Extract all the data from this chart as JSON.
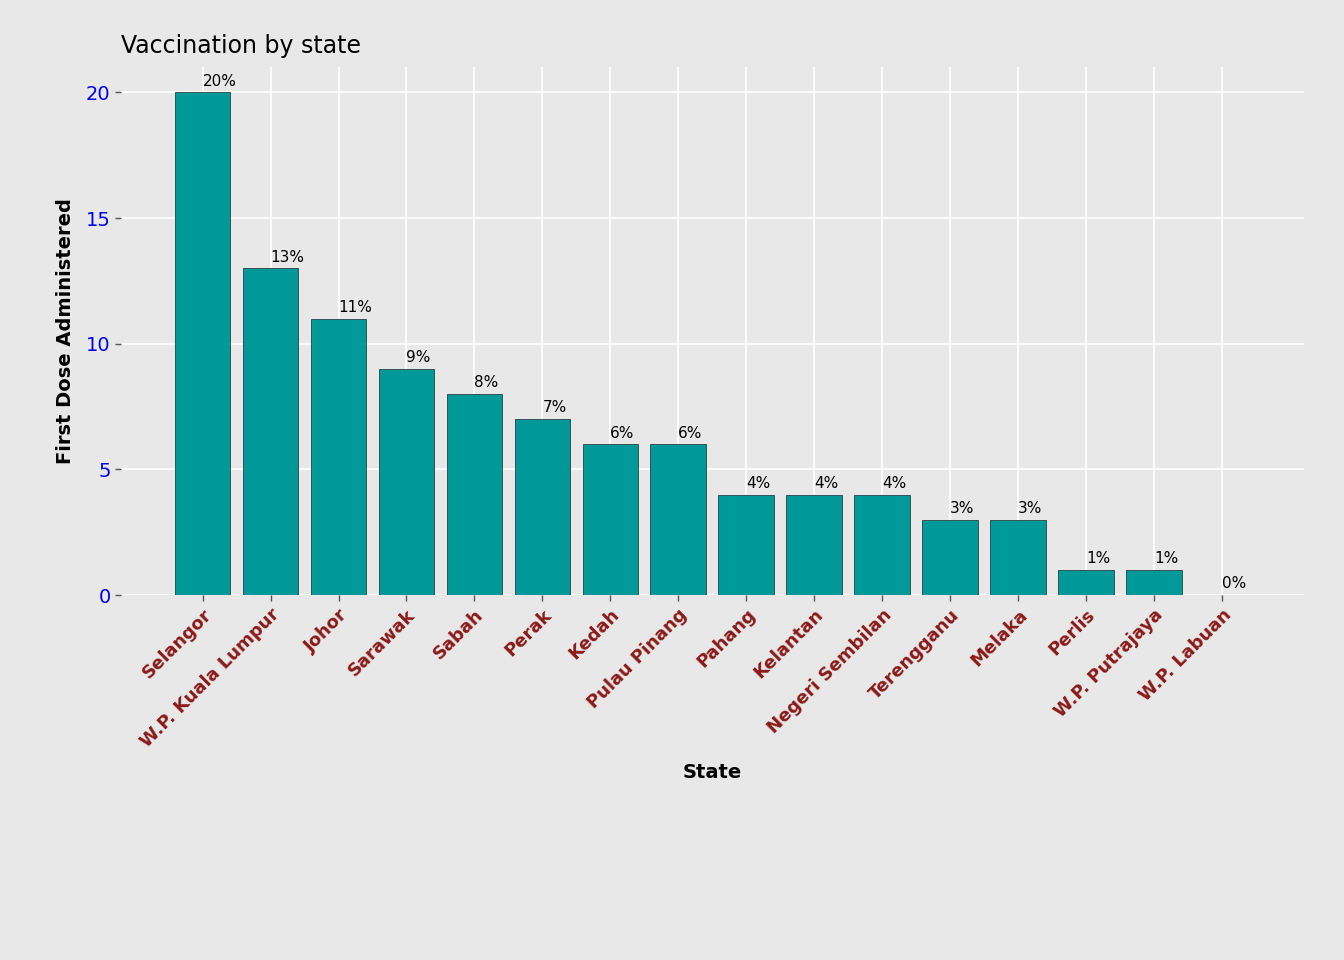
{
  "title": "Vaccination by state",
  "xlabel": "State",
  "ylabel": "First Dose Administered",
  "categories": [
    "Selangor",
    "W.P. Kuala Lumpur",
    "Johor",
    "Sarawak",
    "Sabah",
    "Perak",
    "Kedah",
    "Pulau Pinang",
    "Pahang",
    "Kelantan",
    "Negeri Sembilan",
    "Terengganu",
    "Melaka",
    "Perlis",
    "W.P. Putrajaya",
    "W.P. Labuan"
  ],
  "values": [
    20,
    13,
    11,
    9,
    8,
    7,
    6,
    6,
    4,
    4,
    4,
    3,
    3,
    1,
    1,
    0
  ],
  "percent_labels": [
    "20%",
    "13%",
    "11%",
    "9%",
    "8%",
    "7%",
    "6%",
    "6%",
    "4%",
    "4%",
    "4%",
    "3%",
    "3%",
    "1%",
    "1%",
    "0%"
  ],
  "bar_color": "#009999",
  "background_color": "#e8e8e8",
  "grid_color": "#ffffff",
  "ytick_color": "#0000ee",
  "xtick_color": "#8b1a1a",
  "label_color": "#000000",
  "title_color": "#000000",
  "ylim": [
    0,
    21
  ],
  "yticks": [
    0,
    5,
    10,
    15,
    20
  ],
  "bar_width": 0.82,
  "label_fontsize": 11,
  "title_fontsize": 17,
  "axis_label_fontsize": 14,
  "ytick_fontsize": 14,
  "xtick_fontsize": 13
}
